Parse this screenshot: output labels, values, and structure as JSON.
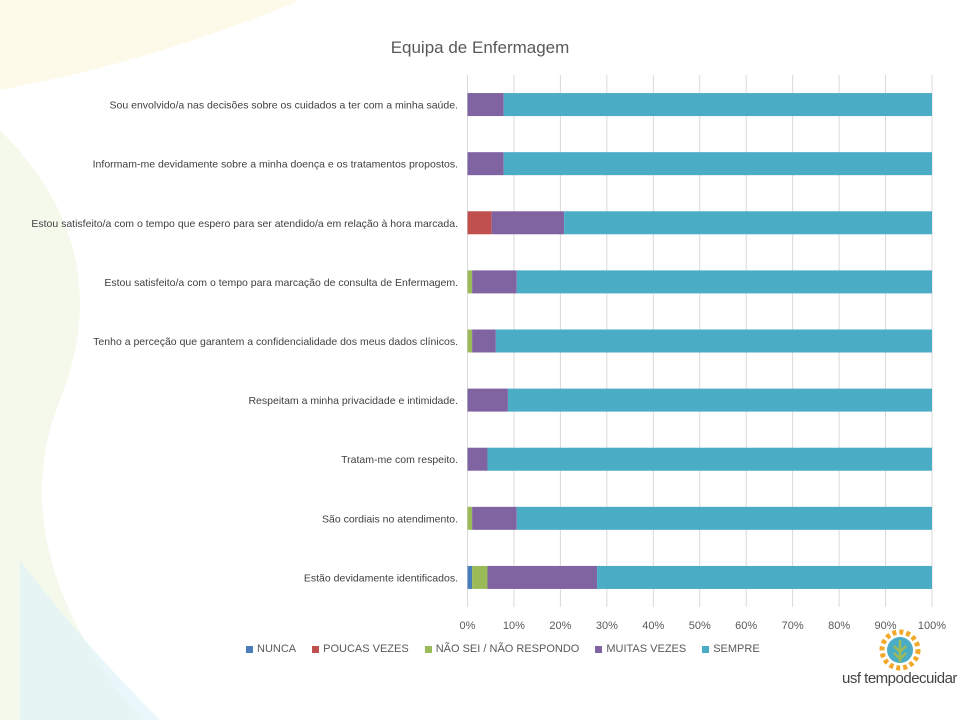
{
  "chart_data": {
    "type": "bar",
    "orientation": "horizontal",
    "stacked": "percent",
    "title": "Equipa de Enfermagem",
    "categories": [
      "Sou envolvido/a nas decisões sobre os cuidados a ter com a minha saúde.",
      "Informam-me devidamente sobre a minha doença e os tratamentos propostos.",
      "Estou satisfeito/a com o tempo que espero para ser atendido/a em relação à hora marcada.",
      "Estou satisfeito/a com o tempo para marcação de consulta de Enfermagem.",
      "Tenho a perceção que garantem a confidencialidade dos meus dados clínicos.",
      "Respeitam a minha privacidade e intimidade.",
      "Tratam-me com respeito.",
      "São cordiais no atendimento.",
      "Estão devidamente identificados."
    ],
    "series": [
      {
        "name": "NUNCA",
        "color": "#4a7ebb",
        "values": [
          0,
          0,
          0,
          0,
          0,
          0,
          0,
          0,
          1.0
        ]
      },
      {
        "name": "POUCAS VEZES",
        "color": "#c0504d",
        "values": [
          0,
          0,
          5.2,
          0,
          0,
          0,
          0,
          0,
          0
        ]
      },
      {
        "name": "NÃO SEI / NÃO RESPONDO",
        "color": "#9bbb59",
        "values": [
          0,
          0,
          0,
          1.0,
          1.0,
          0,
          0,
          1.0,
          3.3
        ]
      },
      {
        "name": "MUITAS VEZES",
        "color": "#8064a2",
        "values": [
          7.8,
          7.8,
          15.6,
          9.6,
          5.1,
          8.7,
          4.3,
          9.6,
          23.6
        ]
      },
      {
        "name": "SEMPRE",
        "color": "#4bacc6",
        "values": [
          92.2,
          92.2,
          79.2,
          89.4,
          93.9,
          91.3,
          95.7,
          89.4,
          72.1
        ]
      }
    ],
    "xlim": [
      0,
      100
    ],
    "xticks": [
      "0%",
      "10%",
      "20%",
      "30%",
      "40%",
      "50%",
      "60%",
      "70%",
      "80%",
      "90%",
      "100%"
    ],
    "grid": true,
    "legend": "bottom"
  },
  "logo": {
    "text": "usf tempodecuidar"
  }
}
